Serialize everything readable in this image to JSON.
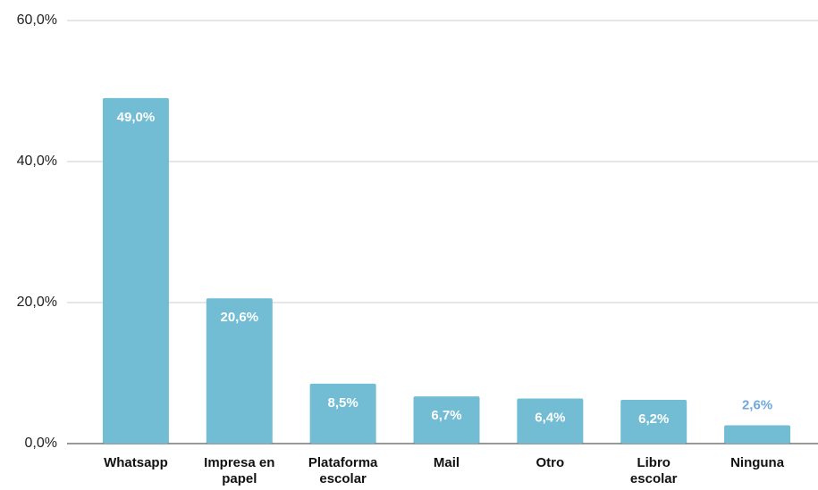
{
  "chart_data": {
    "type": "bar",
    "categories": [
      "Whatsapp",
      "Impresa en papel",
      "Plataforma escolar",
      "Mail",
      "Otro",
      "Libro escolar",
      "Ninguna"
    ],
    "values": [
      49.0,
      20.6,
      8.5,
      6.7,
      6.4,
      6.2,
      2.6
    ],
    "value_labels": [
      "49,0%",
      "20,6%",
      "8,5%",
      "6,7%",
      "6,4%",
      "6,2%",
      "2,6%"
    ],
    "color": "#72bcd4",
    "ylim": [
      0,
      60
    ],
    "yticks": [
      {
        "value": 0,
        "label": "0,0%"
      },
      {
        "value": 20,
        "label": "20,0%"
      },
      {
        "value": 40,
        "label": "40,0%"
      },
      {
        "value": 60,
        "label": "60,0%"
      }
    ],
    "grid": true
  }
}
